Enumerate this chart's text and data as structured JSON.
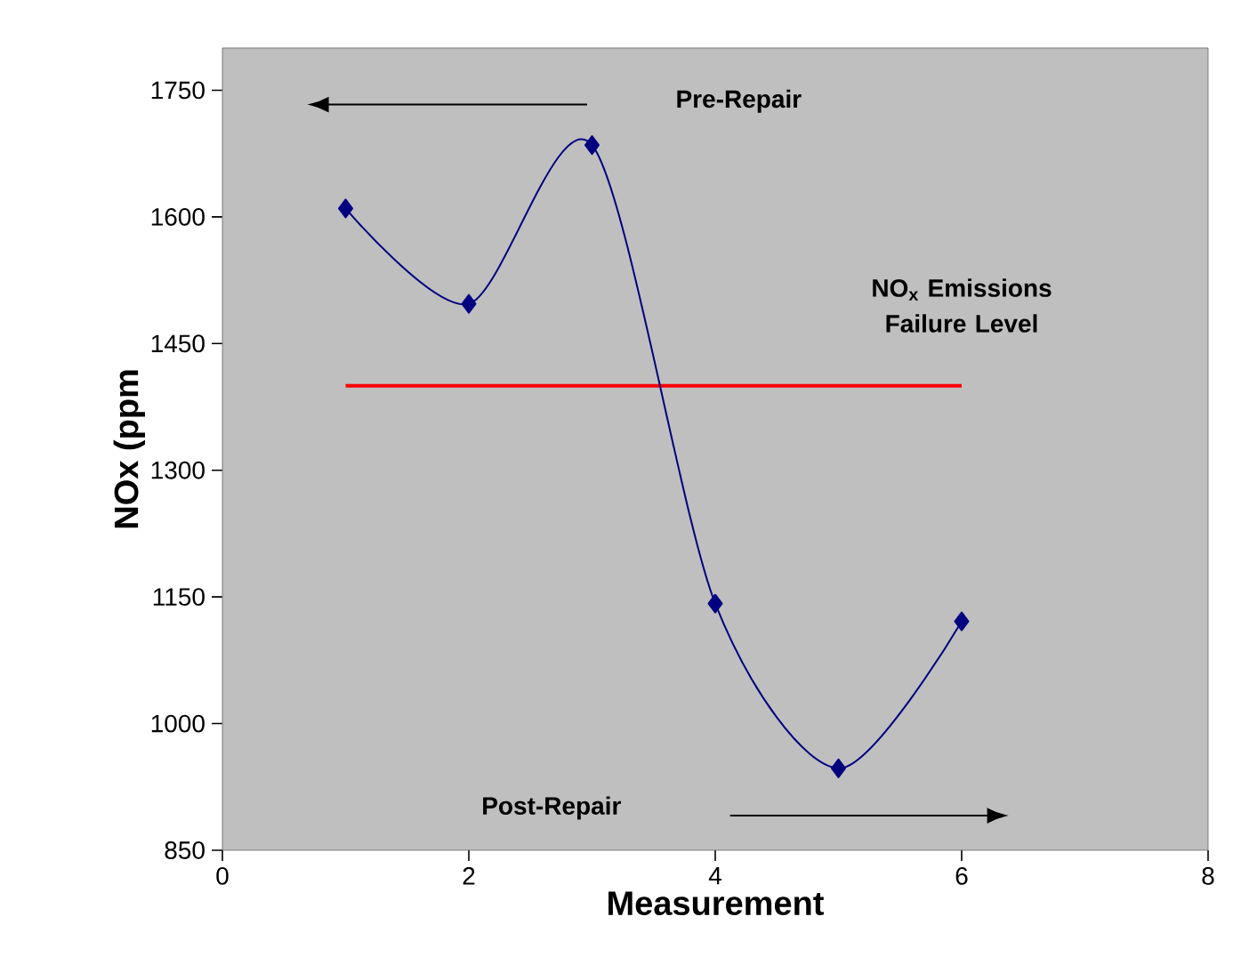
{
  "chart_data": {
    "type": "line",
    "xlabel": "Measurement",
    "ylabel": "NOx (ppm",
    "x": [
      1,
      2,
      3,
      4,
      5,
      6
    ],
    "series": [
      {
        "color": "#000080",
        "values": [
          1610,
          1497,
          1685,
          1142,
          947,
          1121
        ]
      }
    ],
    "marker": "diamond",
    "line_style": "solid",
    "xlim": [
      0,
      8
    ],
    "xticks": [
      0,
      2,
      4,
      6,
      8
    ],
    "ylim": [
      850,
      1800
    ],
    "yticks": [
      850,
      1000,
      1150,
      1300,
      1450,
      1600,
      1750
    ],
    "ref_lines": [
      {
        "axis": "y",
        "value": 1400,
        "label": "NO$_{x}$ Emissions Failure Level",
        "color": "#ff0000"
      }
    ],
    "annotations": [
      "Pre-Repair",
      "Post-Repair"
    ],
    "grid": false
  }
}
